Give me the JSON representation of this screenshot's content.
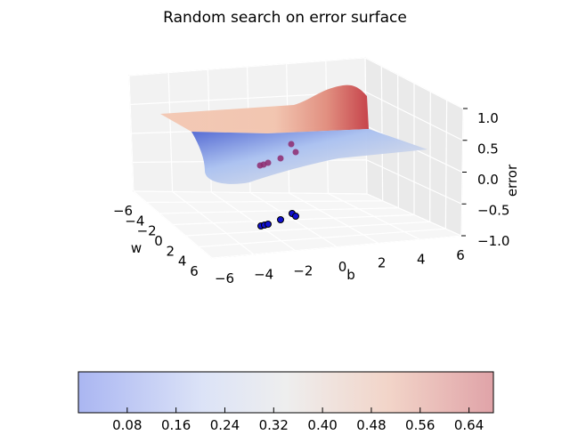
{
  "chart_data": {
    "type": "surface3d",
    "title": "Random search on error surface",
    "xlabel": "w",
    "ylabel": "b",
    "zlabel": "error",
    "xlim": [
      -6,
      6
    ],
    "ylim": [
      -6,
      6
    ],
    "zlim": [
      -1,
      1
    ],
    "x_ticks": [
      "−6",
      "−4",
      "−2",
      "0",
      "2",
      "4",
      "6"
    ],
    "y_ticks": [
      "−6",
      "−4",
      "−2",
      "0",
      "2",
      "4",
      "6"
    ],
    "z_ticks": [
      "−1.0",
      "−0.5",
      "0.0",
      "0.5",
      "1.0"
    ],
    "grid": true,
    "colormap": "coolwarm",
    "colors": {
      "low": "#3b4cc0",
      "mid": "#dddddd",
      "high": "#b40426",
      "point_surface": "#8e2a6e",
      "point_floor": "#1010d0"
    },
    "search_points": [
      {
        "w": -1.0,
        "b": -5.2,
        "error": 0.2
      },
      {
        "w": -0.5,
        "b": -4.8,
        "error": 0.22
      },
      {
        "w": 0.0,
        "b": -4.3,
        "error": 0.25
      },
      {
        "w": 0.5,
        "b": -3.1,
        "error": 0.3
      },
      {
        "w": -0.8,
        "b": -2.2,
        "error": 0.45
      },
      {
        "w": 0.8,
        "b": -2.0,
        "error": 0.4
      }
    ],
    "colorbar": {
      "ticks": [
        "0.08",
        "0.16",
        "0.24",
        "0.32",
        "0.40",
        "0.48",
        "0.56",
        "0.64"
      ],
      "range": [
        0.0,
        0.68
      ]
    }
  }
}
